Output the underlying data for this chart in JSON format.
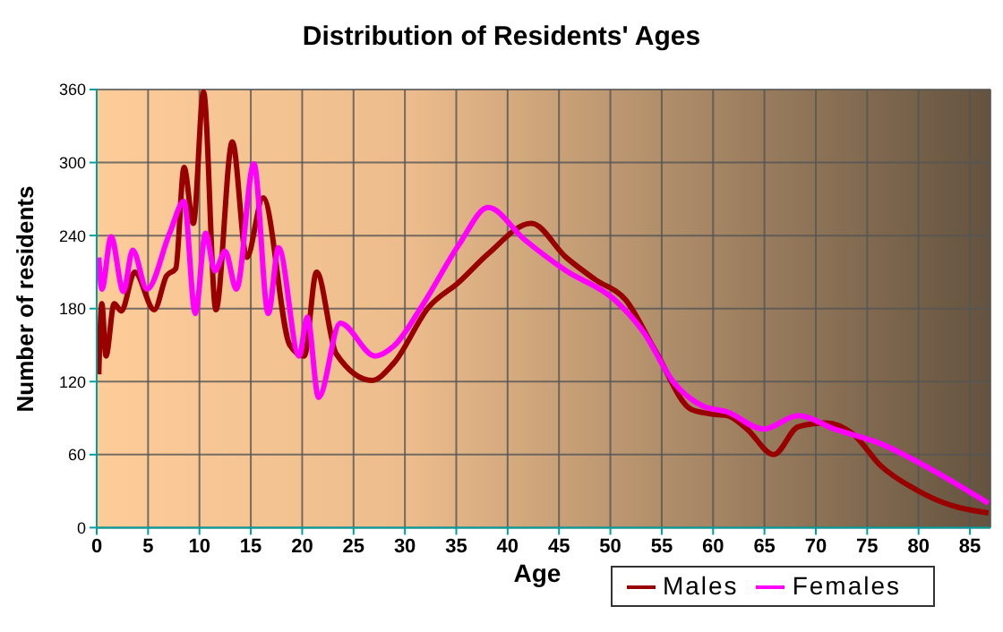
{
  "chart_data": {
    "type": "line",
    "title": "Distribution of Residents' Ages",
    "xlabel": "Age",
    "ylabel": "Number of residents",
    "xlim": [
      0,
      87
    ],
    "xticks": [
      0,
      5,
      10,
      15,
      20,
      25,
      30,
      35,
      40,
      45,
      50,
      55,
      60,
      65,
      70,
      75,
      80,
      85
    ],
    "ylim": [
      0,
      360
    ],
    "yticks": [
      0,
      60,
      120,
      180,
      240,
      300,
      360
    ],
    "grid": true,
    "legend": "bottom right",
    "marker": "none",
    "line_style": "solid",
    "series": [
      {
        "name": "Males",
        "color": "#990000",
        "x": [
          0.2,
          0.5,
          0.9,
          1.7,
          2.4,
          3.7,
          5.6,
          6.8,
          7.7,
          8.5,
          9.4,
          10.4,
          11.6,
          13.2,
          14.6,
          16.2,
          18.8,
          20.2,
          21.4,
          23.3,
          26.8,
          28.9,
          32.3,
          35.3,
          38.1,
          42.3,
          45.7,
          48.5,
          51.5,
          54.4,
          57.9,
          60.2,
          61.4,
          63.3,
          65.9,
          68.3,
          71,
          73.6,
          76.3,
          79.8,
          83.3,
          86.8
        ],
        "values": [
          126,
          184,
          141,
          184,
          178,
          210,
          179,
          207,
          213,
          296,
          250,
          358,
          179,
          317,
          222,
          271,
          150,
          141,
          210,
          143,
          121,
          135,
          181,
          202,
          225,
          250,
          222,
          204,
          187,
          145,
          97,
          93,
          92,
          81,
          60,
          83,
          86,
          77,
          51,
          31,
          18,
          12
        ]
      },
      {
        "name": "Females",
        "color": "#ff00ff",
        "x": [
          0.2,
          0.5,
          1.4,
          2.6,
          3.5,
          4.9,
          7.1,
          8.5,
          9.6,
          10.6,
          11.5,
          12.5,
          13.6,
          15.3,
          16.7,
          17.7,
          19.7,
          20.5,
          21.6,
          23.7,
          27.1,
          28.9,
          31.8,
          35.3,
          38.1,
          41.6,
          45.7,
          50.3,
          53.2,
          56.2,
          59,
          61.4,
          64.9,
          68.3,
          71.8,
          76.3,
          81,
          86.8
        ],
        "values": [
          222,
          196,
          239,
          194,
          228,
          196,
          242,
          268,
          176,
          242,
          211,
          227,
          196,
          299,
          176,
          230,
          141,
          173,
          107,
          168,
          141,
          149,
          184,
          233,
          263,
          237,
          211,
          188,
          161,
          119,
          100,
          95,
          81,
          92,
          81,
          69,
          49,
          20
        ]
      }
    ]
  }
}
